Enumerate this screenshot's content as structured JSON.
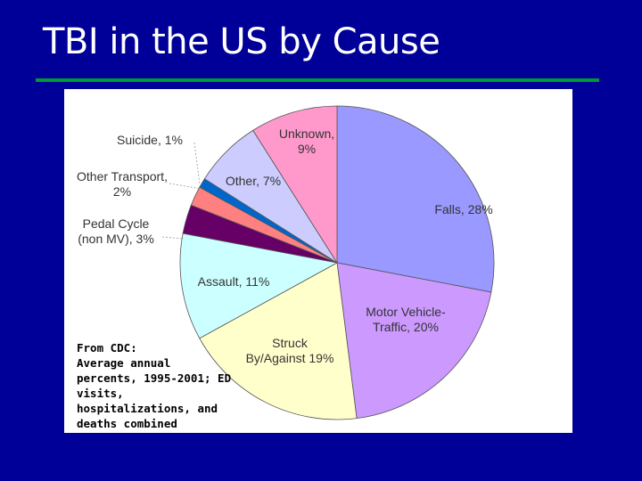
{
  "slide": {
    "title": "TBI in the US by Cause",
    "source_note": "From CDC:\nAverage annual percents, 1995-2001; ED visits, hospitalizations, and deaths combined"
  },
  "colors": {
    "background": "#000099",
    "title_rule": "#009933",
    "panel": "#ffffff"
  },
  "chart_data": {
    "type": "pie",
    "title": "",
    "slices": [
      {
        "name": "Falls",
        "value": 28,
        "label": [
          "Falls, 28%"
        ],
        "color": "#9999ff"
      },
      {
        "name": "Motor Vehicle-Traffic",
        "value": 20,
        "label": [
          "Motor Vehicle-",
          "Traffic, 20%"
        ],
        "color": "#cc99ff"
      },
      {
        "name": "Struck By/Against",
        "value": 19,
        "label": [
          "Struck",
          "By/Against  19%"
        ],
        "color": "#ffffcc"
      },
      {
        "name": "Assault",
        "value": 11,
        "label": [
          "Assault, 11%"
        ],
        "color": "#ccffff"
      },
      {
        "name": "Pedal Cycle (non MV)",
        "value": 3,
        "label": [
          "Pedal Cycle",
          "(non MV), 3%"
        ],
        "color": "#660066"
      },
      {
        "name": "Other Transport",
        "value": 2,
        "label": [
          "Other Transport,",
          "2%"
        ],
        "color": "#ff8080"
      },
      {
        "name": "Suicide",
        "value": 1,
        "label": [
          "Suicide, 1%"
        ],
        "color": "#0066cc"
      },
      {
        "name": "Other",
        "value": 7,
        "label": [
          "Other, 7%"
        ],
        "color": "#ccccff"
      },
      {
        "name": "Unknown",
        "value": 9,
        "label": [
          "Unknown,",
          "9%"
        ],
        "color": "#ff99cc"
      }
    ]
  }
}
